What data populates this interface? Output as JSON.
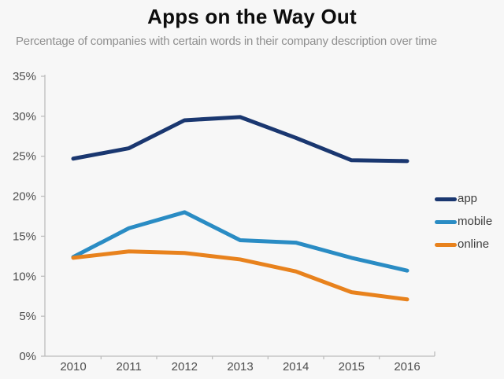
{
  "header": {
    "title": "Apps on the Way Out",
    "subtitle": "Percentage of companies with certain words in their company description over time"
  },
  "chart_data": {
    "type": "line",
    "title": "Apps on the Way Out",
    "subtitle": "Percentage of companies with certain words in their company description over time",
    "categories": [
      "2010",
      "2011",
      "2012",
      "2013",
      "2014",
      "2015",
      "2016"
    ],
    "series": [
      {
        "name": "app",
        "color": "#1a3770",
        "values": [
          24.7,
          26.0,
          29.5,
          29.9,
          27.3,
          24.5,
          24.4
        ]
      },
      {
        "name": "mobile",
        "color": "#2a8cc4",
        "values": [
          12.4,
          16.0,
          18.0,
          14.5,
          14.2,
          12.3,
          10.7
        ]
      },
      {
        "name": "online",
        "color": "#e8821d",
        "values": [
          12.3,
          13.1,
          12.9,
          12.1,
          10.6,
          8.0,
          7.1
        ]
      }
    ],
    "xlabel": "",
    "ylabel": "",
    "y_ticks": [
      "0%",
      "5%",
      "10%",
      "15%",
      "20%",
      "25%",
      "30%",
      "35%"
    ],
    "ylim": [
      0,
      35
    ],
    "grid": false,
    "legend_position": "right"
  },
  "colors": {
    "background": "#f7f7f7",
    "axis": "#bdbdbd",
    "tick_label": "#4d4d4d",
    "title": "#0d0d0d",
    "subtitle": "#8f8f8f"
  }
}
